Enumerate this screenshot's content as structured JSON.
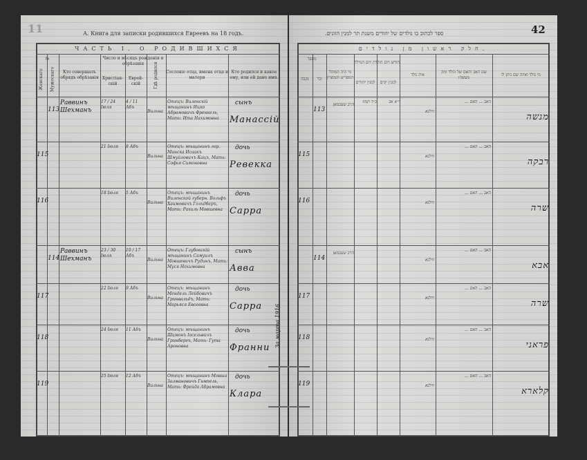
{
  "left_page": {
    "corner_mark": "11",
    "heading": "А. Книга для записки родившихся Евреевъ на 18    годъ.",
    "part_title": "ЧАСТЬ I. О РОДИВШИХСЯ",
    "columns": {
      "number": "№",
      "female": "Женскаго",
      "male": "Мужескаго",
      "performer": "Кто совершалъ обрядъ обрѣзанія",
      "date_group": "Число и мѣсяцъ рожденія и обрѣзанія",
      "christian": "Христіан-скій",
      "jewish": "Еврей-скій",
      "place": "Гдѣ родился",
      "father": "Сословіе отца, имена отца и матери",
      "child": "Кто родился и какое ему, или ей дано имя."
    },
    "rows": [
      {
        "female": "",
        "male": "113",
        "performer": "Раввинъ Шехманъ",
        "christian": "17 / 24 Іюля",
        "jewish": "4 / 11 Абъ",
        "place": "Вильна",
        "father": "Отецъ: Виленскій мѣщанинъ Ицко Абрамовичъ Френкель, Мать: Ита Нахимовна",
        "sex": "сынъ",
        "name": "Манассій"
      },
      {
        "female": "115",
        "male": "",
        "performer": "",
        "christian": "21 Іюля",
        "jewish": "8 Абъ",
        "place": "Вильна",
        "father": "Отецъ: мѣщанинъ гор. Минска Исаакъ Шмуйловичъ Кацъ, Мать: Софья Симоновна",
        "sex": "дочь",
        "name": "Ревекка"
      },
      {
        "female": "116",
        "male": "",
        "performer": "",
        "christian": "18 Іюля",
        "jewish": "5 Абъ",
        "place": "Вильна",
        "father": "Отецъ: мѣщанинъ Виленской губерн. Вольфъ Хаимовичъ Гольдберъ, Мать: Рахиль Мовшевна",
        "sex": "дочь",
        "name": "Сарра"
      },
      {
        "female": "",
        "male": "114",
        "performer": "Раввинъ Шехманъ",
        "christian": "23 / 30 Іюля",
        "jewish": "10 / 17 Абъ",
        "place": "Вильна",
        "father": "Отецъ: Глубокскій мѣщанинъ Самуилъ Мовшевичъ Рудинъ, Мать: Муся Нохимовна",
        "sex": "сынъ",
        "name": "Авва"
      },
      {
        "female": "117",
        "male": "",
        "performer": "",
        "christian": "22 Іюля",
        "jewish": "9 Абъ",
        "place": "Вильна",
        "father": "Отецъ: мѣщанинъ Мендель Лейбовичъ Гринвальдъ, Мать: Марьяся Евсеевна",
        "sex": "дочь",
        "name": "Сарра"
      },
      {
        "female": "118",
        "male": "",
        "performer": "",
        "christian": "24 Іюля",
        "jewish": "11 Абъ",
        "place": "Вильна",
        "father": "Отецъ: мѣщанинъ Шимонъ Іосельвичъ Гринбергъ, Мать: Гута Ароновна",
        "sex": "дочь",
        "name": "Франни"
      },
      {
        "female": "119",
        "male": "",
        "performer": "",
        "christian": "25 Іюля",
        "jewish": "12 Абъ",
        "place": "Вильна",
        "father": "Отецъ: мѣщанинъ Мовша Залмановичъ Гимпель, Мать: Фрейда Абрамовна",
        "sex": "дочь",
        "name": "Клара"
      }
    ],
    "margin_note": "За марта 1916"
  },
  "right_page": {
    "page_number": "42",
    "heading": "ספר לכתוב בו נולדים של יהודים משנת תר   למנין הזונים.",
    "part_title": "חלק ראשון מן נולדים.",
    "columns": {
      "number": "מספר",
      "female": "נקבה",
      "male": "זכר",
      "mohel": "מי היה המוהל המפריע והמוציץ",
      "date_group": "חודש ויום הולדת ויום המילה",
      "jewish": "למנין יהודים",
      "christian": "למנין יונים",
      "place": "איה נולד",
      "parents": "שם האב והאם של הולד ומה מעשהו",
      "name": "מי נולד ואיזה שם ניתן לו"
    },
    "rows": [
      {
        "female": "",
        "male": "113",
        "mohel": "הרב שעכמאן",
        "jewish": "כ״ד תמוז",
        "christian": "י״א אב",
        "place": "ווילנא",
        "parents": "האב ... האם ...",
        "name": "מנשה"
      },
      {
        "female": "115",
        "male": "",
        "mohel": "",
        "jewish": "",
        "christian": "",
        "place": "ווילנא",
        "parents": "האב ... האם ...",
        "name": "רבקה"
      },
      {
        "female": "116",
        "male": "",
        "mohel": "",
        "jewish": "",
        "christian": "",
        "place": "ווילנא",
        "parents": "האב ... האם ...",
        "name": "שרה"
      },
      {
        "female": "",
        "male": "114",
        "mohel": "הרב שעכמאן",
        "jewish": "",
        "christian": "",
        "place": "ווילנא",
        "parents": "האב ... האם ...",
        "name": "אבא"
      },
      {
        "female": "117",
        "male": "",
        "mohel": "",
        "jewish": "",
        "christian": "",
        "place": "ווילנא",
        "parents": "האב ... האם ...",
        "name": "שרה"
      },
      {
        "female": "118",
        "male": "",
        "mohel": "",
        "jewish": "",
        "christian": "",
        "place": "ווילנא",
        "parents": "האב ... האם ...",
        "name": "פראני"
      },
      {
        "female": "119",
        "male": "",
        "mohel": "",
        "jewish": "",
        "christian": "",
        "place": "ווילנא",
        "parents": "האב ... האם ...",
        "name": "קלארא"
      }
    ]
  }
}
